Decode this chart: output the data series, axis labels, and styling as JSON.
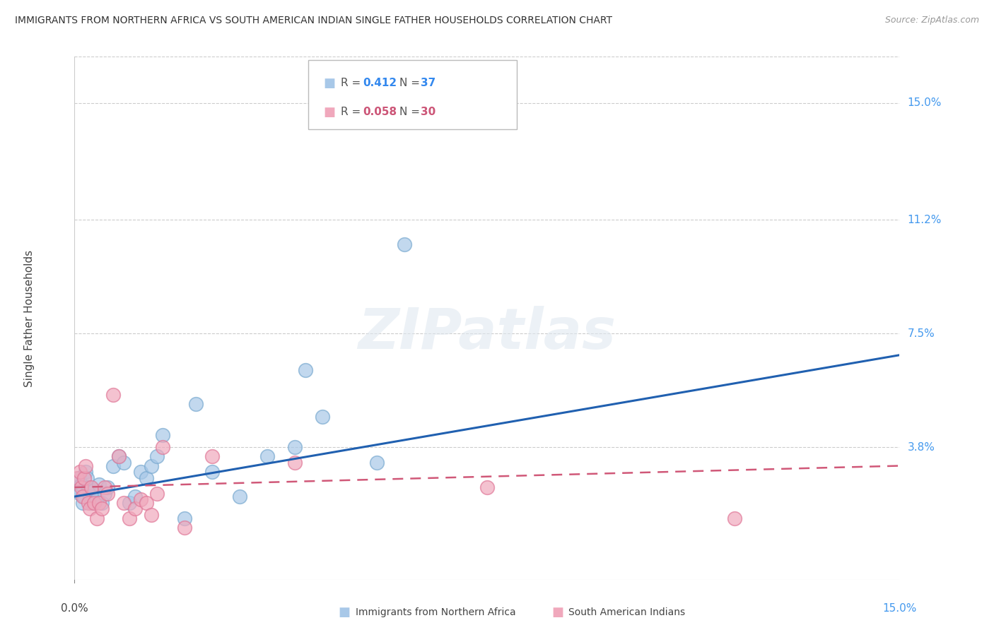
{
  "title": "IMMIGRANTS FROM NORTHERN AFRICA VS SOUTH AMERICAN INDIAN SINGLE FATHER HOUSEHOLDS CORRELATION CHART",
  "source": "Source: ZipAtlas.com",
  "ylabel": "Single Father Households",
  "xlim": [
    0.0,
    15.0
  ],
  "ylim": [
    -0.5,
    16.5
  ],
  "ytick_labels": [
    "15.0%",
    "11.2%",
    "7.5%",
    "3.8%"
  ],
  "ytick_values": [
    15.0,
    11.2,
    7.5,
    3.8
  ],
  "background_color": "#ffffff",
  "watermark": "ZIPatlas",
  "blue_color": "#a8c8e8",
  "blue_edge_color": "#7aaad0",
  "pink_color": "#f0a8bc",
  "pink_edge_color": "#e07898",
  "blue_line_color": "#2060b0",
  "pink_line_color": "#d05878",
  "blue_line_y0": 2.2,
  "blue_line_y1": 6.8,
  "pink_line_y0": 2.5,
  "pink_line_y1": 3.2,
  "blue_scatter": [
    [
      0.05,
      2.5
    ],
    [
      0.08,
      2.8
    ],
    [
      0.1,
      2.3
    ],
    [
      0.12,
      2.6
    ],
    [
      0.15,
      2.0
    ],
    [
      0.18,
      2.2
    ],
    [
      0.2,
      3.0
    ],
    [
      0.22,
      2.8
    ],
    [
      0.25,
      2.5
    ],
    [
      0.28,
      2.2
    ],
    [
      0.3,
      2.0
    ],
    [
      0.35,
      2.4
    ],
    [
      0.4,
      2.1
    ],
    [
      0.45,
      2.6
    ],
    [
      0.5,
      2.0
    ],
    [
      0.55,
      2.3
    ],
    [
      0.6,
      2.5
    ],
    [
      0.7,
      3.2
    ],
    [
      0.8,
      3.5
    ],
    [
      0.9,
      3.3
    ],
    [
      1.0,
      2.0
    ],
    [
      1.1,
      2.2
    ],
    [
      1.2,
      3.0
    ],
    [
      1.3,
      2.8
    ],
    [
      1.4,
      3.2
    ],
    [
      1.5,
      3.5
    ],
    [
      1.6,
      4.2
    ],
    [
      2.0,
      1.5
    ],
    [
      2.2,
      5.2
    ],
    [
      2.5,
      3.0
    ],
    [
      3.0,
      2.2
    ],
    [
      3.5,
      3.5
    ],
    [
      4.0,
      3.8
    ],
    [
      4.2,
      6.3
    ],
    [
      4.5,
      4.8
    ],
    [
      5.5,
      3.3
    ],
    [
      6.0,
      10.4
    ]
  ],
  "pink_scatter": [
    [
      0.05,
      2.8
    ],
    [
      0.1,
      3.0
    ],
    [
      0.12,
      2.5
    ],
    [
      0.15,
      2.2
    ],
    [
      0.18,
      2.8
    ],
    [
      0.2,
      3.2
    ],
    [
      0.25,
      2.0
    ],
    [
      0.28,
      1.8
    ],
    [
      0.3,
      2.5
    ],
    [
      0.35,
      2.0
    ],
    [
      0.4,
      1.5
    ],
    [
      0.45,
      2.0
    ],
    [
      0.5,
      1.8
    ],
    [
      0.55,
      2.5
    ],
    [
      0.6,
      2.3
    ],
    [
      0.7,
      5.5
    ],
    [
      0.8,
      3.5
    ],
    [
      0.9,
      2.0
    ],
    [
      1.0,
      1.5
    ],
    [
      1.1,
      1.8
    ],
    [
      1.2,
      2.1
    ],
    [
      1.3,
      2.0
    ],
    [
      1.4,
      1.6
    ],
    [
      1.5,
      2.3
    ],
    [
      1.6,
      3.8
    ],
    [
      2.0,
      1.2
    ],
    [
      2.5,
      3.5
    ],
    [
      4.0,
      3.3
    ],
    [
      7.5,
      2.5
    ],
    [
      12.0,
      1.5
    ]
  ]
}
